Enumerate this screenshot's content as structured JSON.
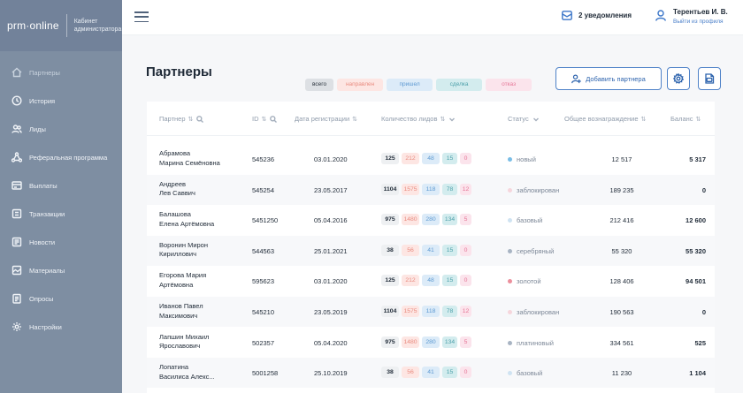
{
  "app": {
    "logo": "prm·online",
    "subtitle_line1": "Кабинет",
    "subtitle_line2": "администратора"
  },
  "sidebar": {
    "items": [
      {
        "label": "Партнеры",
        "icon": "partners-icon",
        "active": true
      },
      {
        "label": "История",
        "icon": "history-icon",
        "active": false
      },
      {
        "label": "Лиды",
        "icon": "leads-icon",
        "active": false
      },
      {
        "label": "Реферальная программа",
        "icon": "referral-icon",
        "active": false
      },
      {
        "label": "Выплаты",
        "icon": "payouts-icon",
        "active": false
      },
      {
        "label": "Транзакции",
        "icon": "transactions-icon",
        "active": false
      },
      {
        "label": "Новости",
        "icon": "news-icon",
        "active": false
      },
      {
        "label": "Материалы",
        "icon": "materials-icon",
        "active": false
      },
      {
        "label": "Опросы",
        "icon": "surveys-icon",
        "active": false
      },
      {
        "label": "Настройки",
        "icon": "settings-icon",
        "active": false
      }
    ]
  },
  "header": {
    "notifications": "2 уведомления",
    "user_name": "Терентьев И. В.",
    "logout": "Выйти из профиля"
  },
  "page": {
    "title": "Партнеры",
    "filters": [
      "всего",
      "направлен",
      "пришел",
      "сделка",
      "отказ"
    ],
    "add_partner": "Добавить партнера"
  },
  "table": {
    "columns": {
      "partner": "Партнер",
      "id": "ID",
      "reg_date": "Дата регистрации",
      "leads": "Количество лидов",
      "status": "Статус",
      "reward": "Общее вознаграждение",
      "balance": "Баланс"
    },
    "rows": [
      {
        "name1": "Абрамова",
        "name2": "Марина Семёновна",
        "id": "545236",
        "date": "03.01.2020",
        "leads": [
          "125",
          "212",
          "48",
          "15",
          "0"
        ],
        "status": "новый",
        "status_color": "#79bde6",
        "reward": "12 517",
        "balance": "5 317"
      },
      {
        "name1": "Андреев",
        "name2": "Лев Саввич",
        "id": "545254",
        "date": "23.05.2017",
        "leads": [
          "1104",
          "1575",
          "118",
          "78",
          "12"
        ],
        "status": "заблокирован",
        "status_color": "#f6d6dc",
        "reward": "189 235",
        "balance": "0"
      },
      {
        "name1": "Балашова",
        "name2": "Елена Артёмовна",
        "id": "5451250",
        "date": "05.04.2016",
        "leads": [
          "975",
          "1480",
          "280",
          "134",
          "5"
        ],
        "status": "базовый",
        "status_color": "#cfe3f2",
        "reward": "212 416",
        "balance": "12 600"
      },
      {
        "name1": "Воронин Мирон",
        "name2": "Кириллович",
        "id": "544563",
        "date": "25.01.2021",
        "leads": [
          "38",
          "56",
          "41",
          "15",
          "0"
        ],
        "status": "серебряный",
        "status_color": "#a8b4c3",
        "reward": "55 320",
        "balance": "55 320"
      },
      {
        "name1": "Егорова Мария",
        "name2": "Артёмовна",
        "id": "595623",
        "date": "03.01.2020",
        "leads": [
          "125",
          "212",
          "48",
          "15",
          "0"
        ],
        "status": "золотой",
        "status_color": "#ec8f9c",
        "reward": "128 406",
        "balance": "94 501"
      },
      {
        "name1": "Иванов Павел",
        "name2": "Максимович",
        "id": "545210",
        "date": "23.05.2019",
        "leads": [
          "1104",
          "1575",
          "118",
          "78",
          "12"
        ],
        "status": "заблокирован",
        "status_color": "#f6d6dc",
        "reward": "190 563",
        "balance": "0"
      },
      {
        "name1": "Лапшин Михаил",
        "name2": "Ярославович",
        "id": "502357",
        "date": "05.04.2020",
        "leads": [
          "975",
          "1480",
          "280",
          "134",
          "5"
        ],
        "status": "платиновый",
        "status_color": "#a8b4c3",
        "reward": "334 561",
        "balance": "525"
      },
      {
        "name1": "Лопатина",
        "name2": "Василиса Алекс...",
        "id": "5001258",
        "date": "25.10.2019",
        "leads": [
          "38",
          "56",
          "41",
          "15",
          "0"
        ],
        "status": "базовый",
        "status_color": "#cfe3f2",
        "reward": "11 230",
        "balance": "1 104"
      }
    ]
  }
}
